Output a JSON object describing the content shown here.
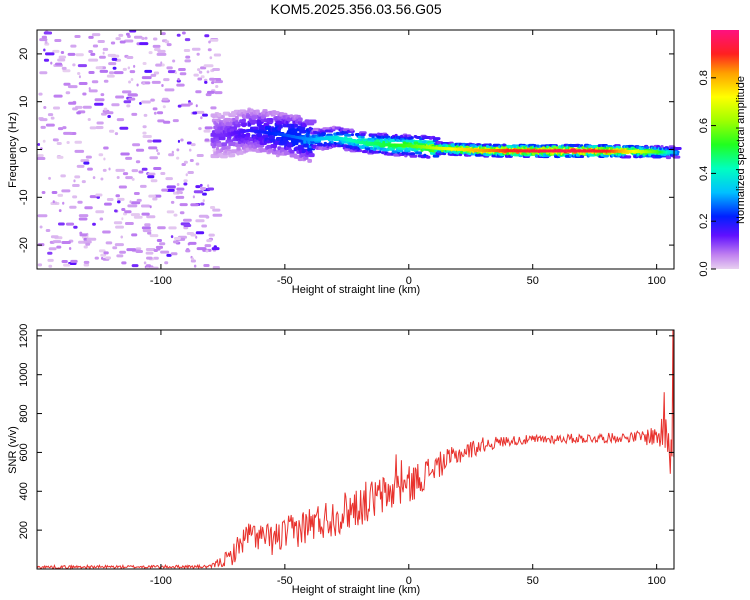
{
  "figure": {
    "title": "KOM5.2025.356.03.56.G05"
  },
  "chart_data": [
    {
      "type": "heatmap",
      "xlabel": "Height of straight line (km)",
      "ylabel": "Frequency (Hz)",
      "xlim": [
        -150,
        107
      ],
      "ylim": [
        -25,
        25
      ],
      "xticks": [
        -100,
        -50,
        0,
        50,
        100
      ],
      "yticks": [
        -20,
        -10,
        0,
        10,
        20
      ],
      "grid": false,
      "ridge": {
        "description_points": [
          {
            "x": -75,
            "freq": 3.0
          },
          {
            "x": -65,
            "freq": 4.0
          },
          {
            "x": -50,
            "freq": 3.0
          },
          {
            "x": -40,
            "freq": 2.0
          },
          {
            "x": -30,
            "freq": 2.5
          },
          {
            "x": -20,
            "freq": 1.5
          },
          {
            "x": -10,
            "freq": 1.0
          },
          {
            "x": 0,
            "freq": 0.8
          },
          {
            "x": 10,
            "freq": 0.3
          },
          {
            "x": 30,
            "freq": -0.2
          },
          {
            "x": 50,
            "freq": -0.3
          },
          {
            "x": 70,
            "freq": -0.3
          },
          {
            "x": 90,
            "freq": -0.4
          },
          {
            "x": 107,
            "freq": -0.6
          }
        ],
        "amplitude_points": [
          {
            "x": -75,
            "amp": 0.12
          },
          {
            "x": -60,
            "amp": 0.2
          },
          {
            "x": -40,
            "amp": 0.3
          },
          {
            "x": -20,
            "amp": 0.45
          },
          {
            "x": 0,
            "amp": 0.55
          },
          {
            "x": 20,
            "amp": 0.75
          },
          {
            "x": 40,
            "amp": 0.9
          },
          {
            "x": 60,
            "amp": 0.95
          },
          {
            "x": 80,
            "amp": 0.9
          },
          {
            "x": 100,
            "amp": 0.55
          },
          {
            "x": 107,
            "amp": 0.3
          }
        ]
      }
    },
    {
      "type": "colorbar",
      "label": "Normalized spectral amplitude",
      "range": [
        0.0,
        1.0
      ],
      "ticks": [
        "0.0",
        "0.2",
        "0.4",
        "0.6",
        "0.8"
      ]
    },
    {
      "type": "line",
      "xlabel": "Height of straight line (km)",
      "ylabel": "SNR (v/v)",
      "xlim": [
        -150,
        107
      ],
      "ylim": [
        0,
        1230
      ],
      "xticks": [
        -100,
        -50,
        0,
        50,
        100
      ],
      "yticks": [
        200,
        400,
        600,
        800,
        1000,
        1200
      ],
      "color": "#e8322d",
      "envelope": [
        {
          "x": -150,
          "y": 10
        },
        {
          "x": -80,
          "y": 12
        },
        {
          "x": -72,
          "y": 60
        },
        {
          "x": -65,
          "y": 180
        },
        {
          "x": -55,
          "y": 150
        },
        {
          "x": -40,
          "y": 230
        },
        {
          "x": -30,
          "y": 270
        },
        {
          "x": -20,
          "y": 330
        },
        {
          "x": -10,
          "y": 380
        },
        {
          "x": 0,
          "y": 430
        },
        {
          "x": 10,
          "y": 520
        },
        {
          "x": 20,
          "y": 590
        },
        {
          "x": 30,
          "y": 640
        },
        {
          "x": 40,
          "y": 660
        },
        {
          "x": 60,
          "y": 670
        },
        {
          "x": 80,
          "y": 675
        },
        {
          "x": 95,
          "y": 680
        },
        {
          "x": 102,
          "y": 690
        },
        {
          "x": 107,
          "y": 680
        }
      ],
      "noise": [
        {
          "x": -150,
          "amp": 8
        },
        {
          "x": -80,
          "amp": 8
        },
        {
          "x": -70,
          "amp": 60
        },
        {
          "x": -50,
          "amp": 90
        },
        {
          "x": -20,
          "amp": 110
        },
        {
          "x": 0,
          "amp": 100
        },
        {
          "x": 15,
          "amp": 60
        },
        {
          "x": 40,
          "amp": 25
        },
        {
          "x": 90,
          "amp": 25
        },
        {
          "x": 100,
          "amp": 60
        },
        {
          "x": 107,
          "amp": 140
        }
      ],
      "spikes": [
        {
          "x": -5,
          "y": 590
        },
        {
          "x": -3,
          "y": 560
        },
        {
          "x": 103,
          "y": 910
        },
        {
          "x": 105.5,
          "y": 490
        },
        {
          "x": 106.5,
          "y": 1230
        }
      ]
    }
  ]
}
